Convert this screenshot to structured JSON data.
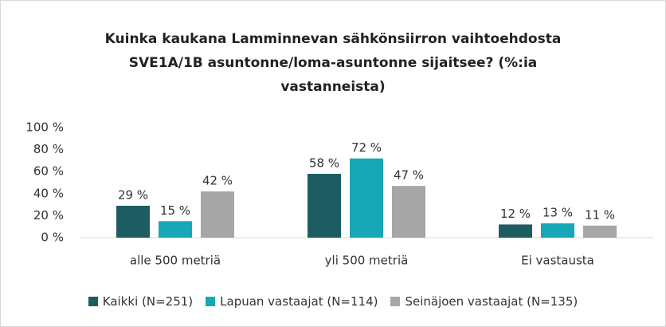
{
  "chart_data": {
    "type": "bar",
    "title": "Kuinka kaukana Lamminnevan sähkönsiirron vaihtoehdosta SVE1A/1B asuntonne/loma-asuntonne sijaitsee? (%:ia vastanneista)",
    "categories": [
      "alle 500 metriä",
      "yli 500 metriä",
      "Ei vastausta"
    ],
    "series": [
      {
        "name": "Kaikki (N=251)",
        "color": "#1d5d62",
        "values": [
          29,
          58,
          12
        ],
        "value_labels": [
          "29 %",
          "58 %",
          "12 %"
        ]
      },
      {
        "name": "Lapuan vastaajat (N=114)",
        "color": "#17a8b7",
        "values": [
          15,
          72,
          13
        ],
        "value_labels": [
          "15 %",
          "72 %",
          "13 %"
        ]
      },
      {
        "name": "Seinäjoen vastaajat (N=135)",
        "color": "#a6a6a6",
        "values": [
          42,
          47,
          11
        ],
        "value_labels": [
          "42 %",
          "47 %",
          "11 %"
        ]
      }
    ],
    "ylim": [
      0,
      100
    ],
    "yticks": [
      {
        "value": 0,
        "label": "0 %"
      },
      {
        "value": 20,
        "label": "20 %"
      },
      {
        "value": 40,
        "label": "40 %"
      },
      {
        "value": 60,
        "label": "60 %"
      },
      {
        "value": 80,
        "label": "80 %"
      },
      {
        "value": 100,
        "label": "100 %"
      }
    ],
    "grid": false,
    "legend": "bottom"
  }
}
